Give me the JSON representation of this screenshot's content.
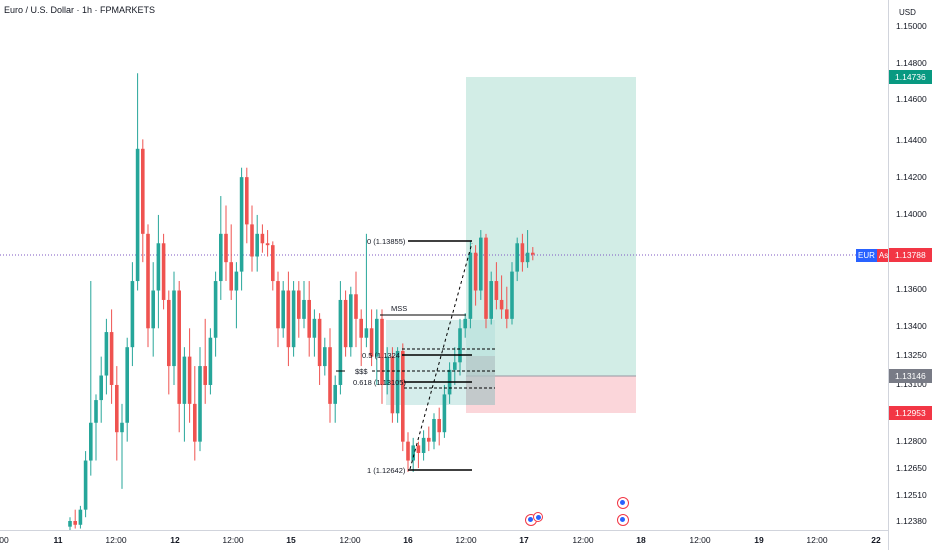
{
  "header": {
    "title": "Euro / U.S. Dollar · 1h · FPMARKETS"
  },
  "price_axis": {
    "currency": "USD",
    "ticks": [
      "1.15000",
      "1.14800",
      "1.14600",
      "1.14400",
      "1.14200",
      "1.14000",
      "1.13600",
      "1.13400",
      "1.13250",
      "1.13100",
      "1.12800",
      "1.12650",
      "1.12510",
      "1.12380"
    ],
    "tags": [
      {
        "value": "1.14736",
        "color": "#089981"
      },
      {
        "value": "1.13788",
        "color": "#f23645"
      },
      {
        "value": "1.13146",
        "color": "#787b86"
      },
      {
        "value": "1.12953",
        "color": "#f23645"
      }
    ]
  },
  "time_axis": {
    "labels": [
      {
        "text": "00",
        "bold": false
      },
      {
        "text": "11",
        "bold": true
      },
      {
        "text": "12:00",
        "bold": false
      },
      {
        "text": "12",
        "bold": true
      },
      {
        "text": "12:00",
        "bold": false
      },
      {
        "text": "15",
        "bold": true
      },
      {
        "text": "12:00",
        "bold": false
      },
      {
        "text": "16",
        "bold": true
      },
      {
        "text": "12:00",
        "bold": false
      },
      {
        "text": "17",
        "bold": true
      },
      {
        "text": "12:00",
        "bold": false
      },
      {
        "text": "18",
        "bold": true
      },
      {
        "text": "12:00",
        "bold": false
      },
      {
        "text": "19",
        "bold": true
      },
      {
        "text": "12:00",
        "bold": false
      },
      {
        "text": "22",
        "bold": true
      }
    ]
  },
  "symbol_tag": {
    "symbol": "EUR",
    "side": "Ask"
  },
  "drawings": {
    "fib_0": "0 (1.13855)",
    "mss": "MSS",
    "fib_05": "0.5 (1.1324",
    "sss": "$$$",
    "fib_0618": "0.618 (1.13105)",
    "fib_1": "1 (1.12642)"
  },
  "colors": {
    "up": "#26a69a",
    "down": "#ef5350",
    "tp_zone": "#d2ede6",
    "sl_zone": "#fbd6da"
  },
  "chart_data": {
    "type": "candlestick",
    "symbol": "EURUSD",
    "timeframe": "1h",
    "ylim": [
      1.1232,
      1.1512
    ],
    "candles": [
      [
        1.1235,
        1.124,
        1.1232,
        1.1238
      ],
      [
        1.1238,
        1.1244,
        1.1234,
        1.1236
      ],
      [
        1.1236,
        1.1246,
        1.1234,
        1.1244
      ],
      [
        1.1244,
        1.1275,
        1.124,
        1.127
      ],
      [
        1.127,
        1.1365,
        1.1262,
        1.129
      ],
      [
        1.129,
        1.1305,
        1.127,
        1.1302
      ],
      [
        1.1302,
        1.1325,
        1.129,
        1.1315
      ],
      [
        1.1315,
        1.1345,
        1.1305,
        1.1338
      ],
      [
        1.1338,
        1.135,
        1.13,
        1.131
      ],
      [
        1.131,
        1.132,
        1.127,
        1.1285
      ],
      [
        1.1285,
        1.13,
        1.1255,
        1.129
      ],
      [
        1.129,
        1.1335,
        1.128,
        1.133
      ],
      [
        1.133,
        1.1375,
        1.132,
        1.1365
      ],
      [
        1.1365,
        1.1475,
        1.136,
        1.1435
      ],
      [
        1.1435,
        1.144,
        1.1375,
        1.139
      ],
      [
        1.139,
        1.1395,
        1.133,
        1.134
      ],
      [
        1.134,
        1.1375,
        1.1325,
        1.136
      ],
      [
        1.136,
        1.14,
        1.134,
        1.1385
      ],
      [
        1.1385,
        1.139,
        1.135,
        1.1355
      ],
      [
        1.1355,
        1.136,
        1.1305,
        1.132
      ],
      [
        1.132,
        1.137,
        1.131,
        1.136
      ],
      [
        1.136,
        1.1365,
        1.1285,
        1.13
      ],
      [
        1.13,
        1.133,
        1.128,
        1.1325
      ],
      [
        1.1325,
        1.134,
        1.129,
        1.13
      ],
      [
        1.13,
        1.132,
        1.127,
        1.128
      ],
      [
        1.128,
        1.133,
        1.1275,
        1.132
      ],
      [
        1.132,
        1.1345,
        1.13,
        1.131
      ],
      [
        1.131,
        1.134,
        1.1305,
        1.1335
      ],
      [
        1.1335,
        1.137,
        1.1325,
        1.1365
      ],
      [
        1.1365,
        1.141,
        1.1355,
        1.139
      ],
      [
        1.139,
        1.1405,
        1.1365,
        1.1375
      ],
      [
        1.1375,
        1.1395,
        1.1355,
        1.136
      ],
      [
        1.136,
        1.1375,
        1.134,
        1.137
      ],
      [
        1.137,
        1.1425,
        1.136,
        1.142
      ],
      [
        1.142,
        1.1425,
        1.1385,
        1.1395
      ],
      [
        1.1395,
        1.1405,
        1.137,
        1.1378
      ],
      [
        1.1378,
        1.14,
        1.137,
        1.139
      ],
      [
        1.139,
        1.1395,
        1.138,
        1.1385
      ],
      [
        1.1385,
        1.1392,
        1.1378,
        1.1384
      ],
      [
        1.1384,
        1.1386,
        1.136,
        1.1365
      ],
      [
        1.1365,
        1.137,
        1.133,
        1.134
      ],
      [
        1.134,
        1.1365,
        1.1335,
        1.136
      ],
      [
        1.136,
        1.137,
        1.132,
        1.133
      ],
      [
        1.133,
        1.1365,
        1.1325,
        1.136
      ],
      [
        1.136,
        1.1365,
        1.1335,
        1.1345
      ],
      [
        1.1345,
        1.1365,
        1.134,
        1.1355
      ],
      [
        1.1355,
        1.1365,
        1.1325,
        1.1335
      ],
      [
        1.1335,
        1.135,
        1.1325,
        1.1345
      ],
      [
        1.1345,
        1.1348,
        1.131,
        1.132
      ],
      [
        1.132,
        1.1335,
        1.1315,
        1.133
      ],
      [
        1.133,
        1.134,
        1.129,
        1.13
      ],
      [
        1.13,
        1.1315,
        1.129,
        1.131
      ],
      [
        1.131,
        1.1365,
        1.1305,
        1.1355
      ],
      [
        1.1355,
        1.136,
        1.1325,
        1.133
      ],
      [
        1.133,
        1.1362,
        1.1325,
        1.1358
      ],
      [
        1.1358,
        1.137,
        1.133,
        1.1345
      ],
      [
        1.1345,
        1.135,
        1.132,
        1.1335
      ],
      [
        1.1335,
        1.139,
        1.133,
        1.134
      ],
      [
        1.134,
        1.135,
        1.132,
        1.1325
      ],
      [
        1.1325,
        1.135,
        1.131,
        1.1345
      ],
      [
        1.1345,
        1.135,
        1.13,
        1.131
      ],
      [
        1.131,
        1.133,
        1.1305,
        1.1325
      ],
      [
        1.1325,
        1.133,
        1.129,
        1.1295
      ],
      [
        1.1295,
        1.133,
        1.129,
        1.1328
      ],
      [
        1.1328,
        1.1332,
        1.1275,
        1.128
      ],
      [
        1.128,
        1.1285,
        1.1264,
        1.127
      ],
      [
        1.127,
        1.1282,
        1.1264,
        1.1278
      ],
      [
        1.1278,
        1.128,
        1.1266,
        1.1274
      ],
      [
        1.1274,
        1.1286,
        1.127,
        1.1282
      ],
      [
        1.1282,
        1.1288,
        1.1275,
        1.128
      ],
      [
        1.128,
        1.1295,
        1.1276,
        1.1292
      ],
      [
        1.1292,
        1.1298,
        1.1278,
        1.1285
      ],
      [
        1.1285,
        1.131,
        1.1282,
        1.1305
      ],
      [
        1.1305,
        1.1322,
        1.13,
        1.1318
      ],
      [
        1.1318,
        1.133,
        1.131,
        1.1322
      ],
      [
        1.1322,
        1.1345,
        1.1315,
        1.134
      ],
      [
        1.134,
        1.1348,
        1.1335,
        1.1345
      ],
      [
        1.1345,
        1.1386,
        1.134,
        1.138
      ],
      [
        1.138,
        1.1384,
        1.1352,
        1.136
      ],
      [
        1.136,
        1.1392,
        1.1355,
        1.1388
      ],
      [
        1.1388,
        1.139,
        1.134,
        1.1345
      ],
      [
        1.1345,
        1.137,
        1.1342,
        1.1365
      ],
      [
        1.1365,
        1.1375,
        1.135,
        1.1355
      ],
      [
        1.1355,
        1.1368,
        1.1345,
        1.135
      ],
      [
        1.135,
        1.1362,
        1.134,
        1.1345
      ],
      [
        1.1345,
        1.1375,
        1.1342,
        1.137
      ],
      [
        1.137,
        1.1388,
        1.1365,
        1.1385
      ],
      [
        1.1385,
        1.139,
        1.137,
        1.1375
      ],
      [
        1.1375,
        1.1392,
        1.1372,
        1.138
      ],
      [
        1.138,
        1.1383,
        1.1376,
        1.1379
      ]
    ]
  }
}
